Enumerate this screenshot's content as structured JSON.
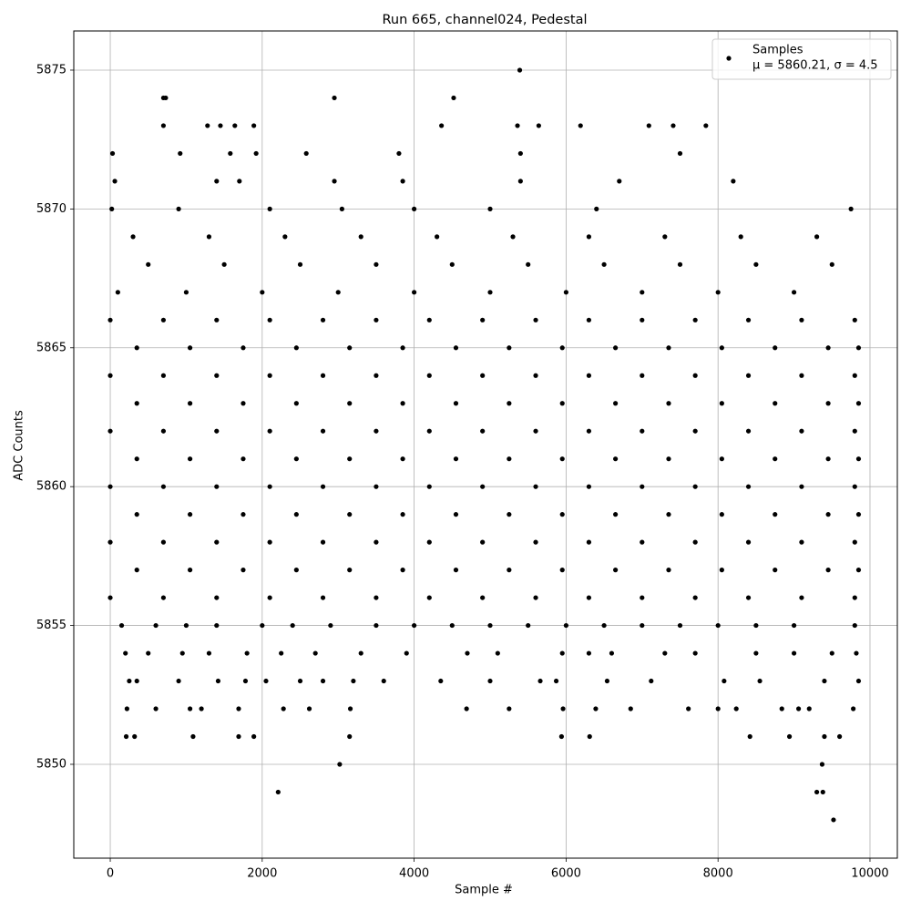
{
  "chart_data": {
    "type": "scatter",
    "title": "Run 665, channel024, Pedestal",
    "x_label": "Sample #",
    "y_label": "ADC Counts",
    "xlim": [
      -480,
      10360
    ],
    "ylim": [
      5846.62,
      5876.41
    ],
    "xticks": [
      0,
      2000,
      4000,
      6000,
      8000,
      10000
    ],
    "yticks": [
      5850,
      5855,
      5860,
      5865,
      5870,
      5875
    ],
    "grid": true,
    "legend": "upper right",
    "legend_note": "μ = 5860.21, σ = 4.5",
    "series": [
      {
        "name": "Samples",
        "color": "#000000",
        "x": [
          700,
          730,
          2950,
          4520,
          5390,
          2210,
          3020,
          9520,
          9300,
          9380,
          9370,
          210,
          320,
          1090,
          1690,
          1890,
          3150,
          5940,
          6310,
          8420,
          8940,
          9400,
          9600,
          700,
          1280,
          1450,
          1640,
          1890,
          4360,
          5360,
          5640,
          6190,
          7090,
          7410,
          7840,
          220,
          600,
          1050,
          1200,
          1690,
          2280,
          2620,
          3160,
          4690,
          5250,
          5960,
          6390,
          6850,
          7610,
          8000,
          8240,
          8840,
          9060,
          9200,
          9780,
          250,
          350,
          900,
          1420,
          1780,
          2050,
          2500,
          2800,
          3200,
          3600,
          4350,
          5000,
          5660,
          5870,
          6540,
          7120,
          8080,
          8550,
          9400,
          9850,
          200,
          500,
          950,
          1300,
          1800,
          2250,
          2700,
          3300,
          3900,
          4700,
          5100,
          5950,
          6300,
          6600,
          7300,
          7700,
          8500,
          9000,
          9500,
          9820,
          150,
          600,
          1000,
          1400,
          2000,
          2400,
          2900,
          3500,
          4000,
          4500,
          5000,
          5500,
          6000,
          6500,
          7000,
          7500,
          8000,
          8500,
          9000,
          9800,
          0,
          700,
          1400,
          2100,
          2800,
          3500,
          4200,
          4900,
          5600,
          6300,
          7000,
          7700,
          8400,
          9100,
          9800,
          350,
          1050,
          1750,
          2450,
          3150,
          3850,
          4550,
          5250,
          5950,
          6650,
          7350,
          8050,
          8750,
          9450,
          9850,
          0,
          700,
          1400,
          2100,
          2800,
          3500,
          4200,
          4900,
          5600,
          6300,
          7000,
          7700,
          8400,
          9100,
          9800,
          350,
          1050,
          1750,
          2450,
          3150,
          3850,
          4550,
          5250,
          5950,
          6650,
          7350,
          8050,
          8750,
          9450,
          9850,
          0,
          700,
          1400,
          2100,
          2800,
          3500,
          4200,
          4900,
          5600,
          6300,
          7000,
          7700,
          8400,
          9100,
          9800,
          350,
          1050,
          1750,
          2450,
          3150,
          3850,
          4550,
          5250,
          5950,
          6650,
          7350,
          8050,
          8750,
          9450,
          9850,
          0,
          700,
          1400,
          2100,
          2800,
          3500,
          4200,
          4900,
          5600,
          6300,
          7000,
          7700,
          8400,
          9100,
          9800,
          350,
          1050,
          1750,
          2450,
          3150,
          3850,
          4550,
          5250,
          5950,
          6650,
          7350,
          8050,
          8750,
          9450,
          9850,
          0,
          700,
          1400,
          2100,
          2800,
          3500,
          4200,
          4900,
          5600,
          6300,
          7000,
          7700,
          8400,
          9100,
          9800,
          350,
          1050,
          1750,
          2450,
          3150,
          3850,
          4550,
          5250,
          5950,
          6650,
          7350,
          8050,
          8750,
          9450,
          9850,
          0,
          700,
          1400,
          2100,
          2800,
          3500,
          4200,
          4900,
          5600,
          6300,
          7000,
          7700,
          8400,
          9100,
          9800,
          100,
          1000,
          2000,
          3000,
          4000,
          5000,
          6000,
          7000,
          8000,
          9000,
          500,
          1500,
          2500,
          3500,
          4500,
          5500,
          6500,
          7500,
          8500,
          9500,
          300,
          1300,
          2300,
          3300,
          4300,
          5300,
          6300,
          7300,
          8300,
          9300,
          20,
          900,
          2100,
          3050,
          4000,
          5000,
          6400,
          9750,
          60,
          1400,
          1700,
          2950,
          3850,
          5400,
          6700,
          8200,
          30,
          920,
          1580,
          1920,
          2580,
          3800,
          5400,
          7500
        ],
        "values": [
          5874,
          5874,
          5874,
          5874,
          5875,
          5849,
          5850,
          5848,
          5849,
          5849,
          5850,
          5851,
          5851,
          5851,
          5851,
          5851,
          5851,
          5851,
          5851,
          5851,
          5851,
          5851,
          5851,
          5873,
          5873,
          5873,
          5873,
          5873,
          5873,
          5873,
          5873,
          5873,
          5873,
          5873,
          5873,
          5852,
          5852,
          5852,
          5852,
          5852,
          5852,
          5852,
          5852,
          5852,
          5852,
          5852,
          5852,
          5852,
          5852,
          5852,
          5852,
          5852,
          5852,
          5852,
          5852,
          5853,
          5853,
          5853,
          5853,
          5853,
          5853,
          5853,
          5853,
          5853,
          5853,
          5853,
          5853,
          5853,
          5853,
          5853,
          5853,
          5853,
          5853,
          5853,
          5853,
          5854,
          5854,
          5854,
          5854,
          5854,
          5854,
          5854,
          5854,
          5854,
          5854,
          5854,
          5854,
          5854,
          5854,
          5854,
          5854,
          5854,
          5854,
          5854,
          5854,
          5855,
          5855,
          5855,
          5855,
          5855,
          5855,
          5855,
          5855,
          5855,
          5855,
          5855,
          5855,
          5855,
          5855,
          5855,
          5855,
          5855,
          5855,
          5855,
          5855,
          5856,
          5856,
          5856,
          5856,
          5856,
          5856,
          5856,
          5856,
          5856,
          5856,
          5856,
          5856,
          5856,
          5856,
          5856,
          5857,
          5857,
          5857,
          5857,
          5857,
          5857,
          5857,
          5857,
          5857,
          5857,
          5857,
          5857,
          5857,
          5857,
          5857,
          5858,
          5858,
          5858,
          5858,
          5858,
          5858,
          5858,
          5858,
          5858,
          5858,
          5858,
          5858,
          5858,
          5858,
          5858,
          5859,
          5859,
          5859,
          5859,
          5859,
          5859,
          5859,
          5859,
          5859,
          5859,
          5859,
          5859,
          5859,
          5859,
          5859,
          5860,
          5860,
          5860,
          5860,
          5860,
          5860,
          5860,
          5860,
          5860,
          5860,
          5860,
          5860,
          5860,
          5860,
          5860,
          5861,
          5861,
          5861,
          5861,
          5861,
          5861,
          5861,
          5861,
          5861,
          5861,
          5861,
          5861,
          5861,
          5861,
          5861,
          5862,
          5862,
          5862,
          5862,
          5862,
          5862,
          5862,
          5862,
          5862,
          5862,
          5862,
          5862,
          5862,
          5862,
          5862,
          5863,
          5863,
          5863,
          5863,
          5863,
          5863,
          5863,
          5863,
          5863,
          5863,
          5863,
          5863,
          5863,
          5863,
          5863,
          5864,
          5864,
          5864,
          5864,
          5864,
          5864,
          5864,
          5864,
          5864,
          5864,
          5864,
          5864,
          5864,
          5864,
          5864,
          5865,
          5865,
          5865,
          5865,
          5865,
          5865,
          5865,
          5865,
          5865,
          5865,
          5865,
          5865,
          5865,
          5865,
          5865,
          5866,
          5866,
          5866,
          5866,
          5866,
          5866,
          5866,
          5866,
          5866,
          5866,
          5866,
          5866,
          5866,
          5866,
          5866,
          5867,
          5867,
          5867,
          5867,
          5867,
          5867,
          5867,
          5867,
          5867,
          5867,
          5868,
          5868,
          5868,
          5868,
          5868,
          5868,
          5868,
          5868,
          5868,
          5868,
          5869,
          5869,
          5869,
          5869,
          5869,
          5869,
          5869,
          5869,
          5869,
          5869,
          5870,
          5870,
          5870,
          5870,
          5870,
          5870,
          5870,
          5870,
          5871,
          5871,
          5871,
          5871,
          5871,
          5871,
          5871,
          5871,
          5872,
          5872,
          5872,
          5872,
          5872,
          5872,
          5872,
          5872
        ]
      }
    ]
  }
}
